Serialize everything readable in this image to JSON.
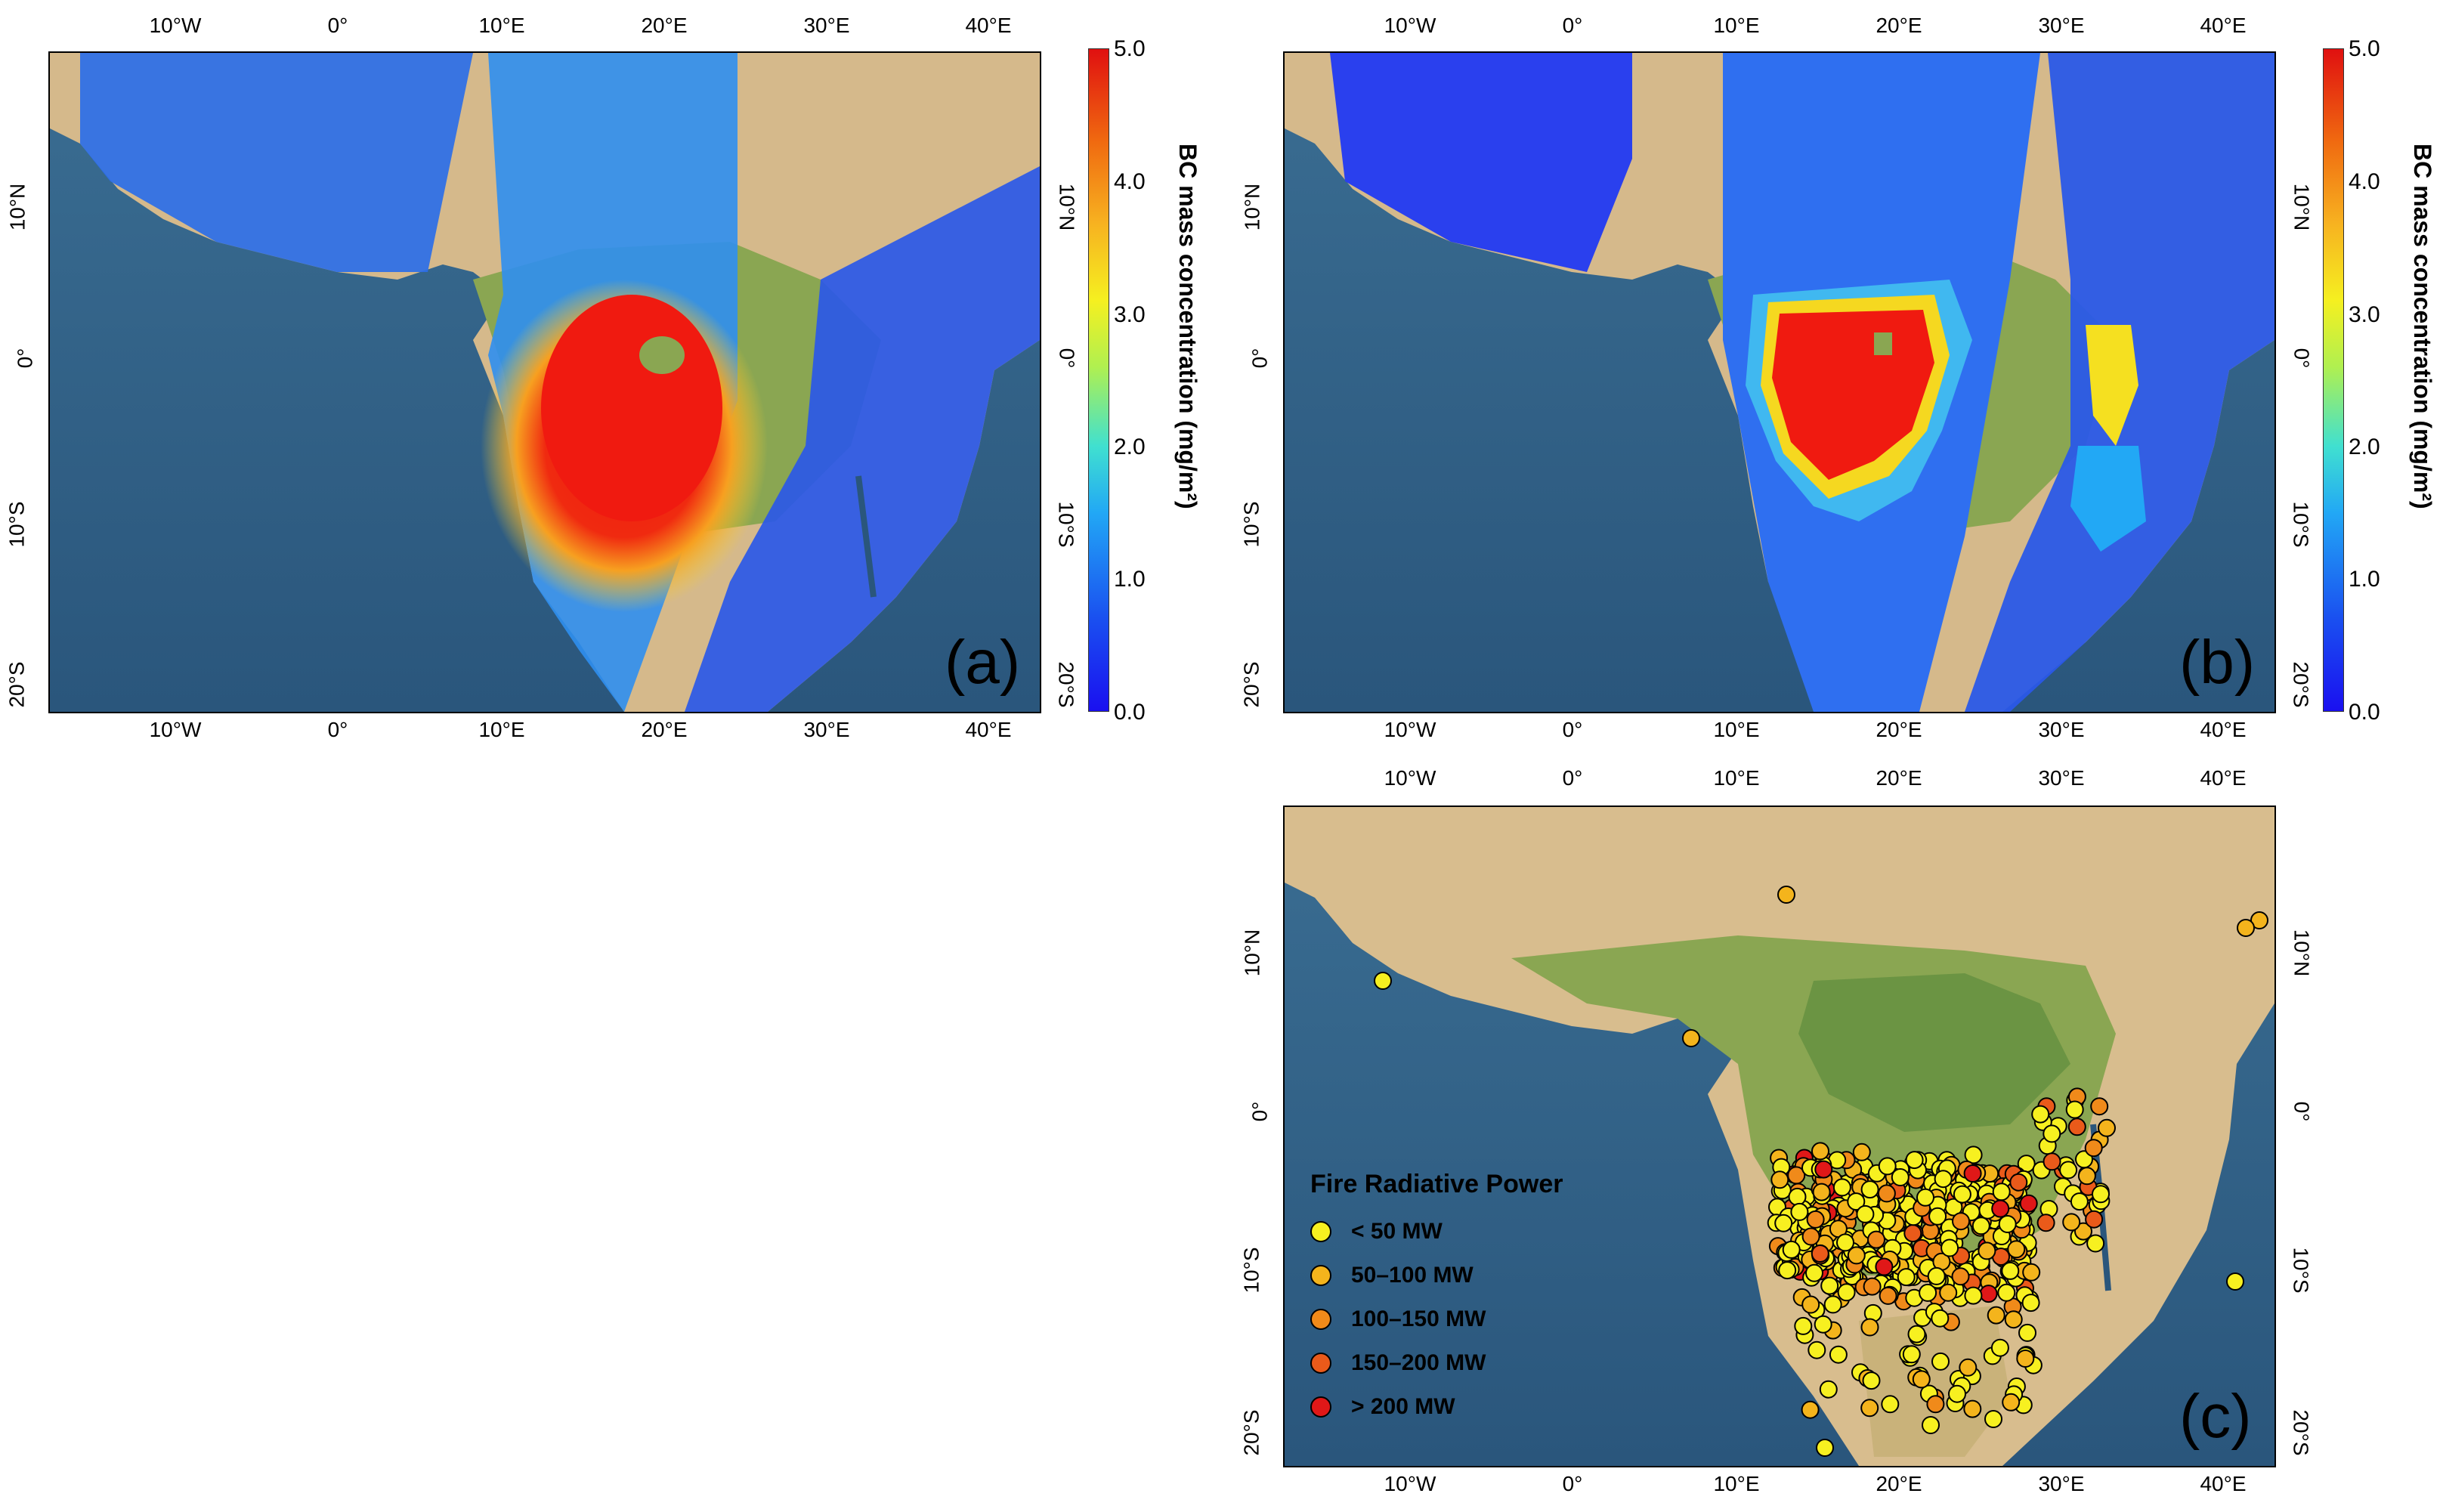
{
  "panels": [
    {
      "id": "a",
      "letter": "(a)",
      "type": "bc-map",
      "lon_ticks": [
        "10°W",
        "0°",
        "10°E",
        "20°E",
        "30°E",
        "40°E"
      ],
      "lat_ticks": [
        "10°N",
        "0°",
        "10°S",
        "20°S"
      ],
      "colorbar": {
        "label": "BC mass concentration (mg/m²)",
        "ticks": [
          "0.0",
          "1.0",
          "2.0",
          "3.0",
          "4.0",
          "5.0"
        ]
      }
    },
    {
      "id": "b",
      "letter": "(b)",
      "type": "bc-map",
      "lon_ticks": [
        "10°W",
        "0°",
        "10°E",
        "20°E",
        "30°E",
        "40°E"
      ],
      "lat_ticks": [
        "10°N",
        "0°",
        "10°S",
        "20°S"
      ],
      "colorbar": {
        "label": "BC mass concentration (mg/m²)",
        "ticks": [
          "0.0",
          "1.0",
          "2.0",
          "3.0",
          "4.0",
          "5.0"
        ]
      }
    },
    {
      "id": "c",
      "letter": "(c)",
      "type": "fire-map",
      "lon_ticks": [
        "10°W",
        "0°",
        "10°E",
        "20°E",
        "30°E",
        "40°E"
      ],
      "lat_ticks": [
        "10°N",
        "0°",
        "10°S",
        "20°S"
      ],
      "legend": {
        "title": "Fire Radiative Power",
        "items": [
          {
            "label": "< 50 MW",
            "color": "#f7f020"
          },
          {
            "label": "50–100 MW",
            "color": "#f4b41c"
          },
          {
            "label": "100–150 MW",
            "color": "#f08a1a"
          },
          {
            "label": "150–200 MW",
            "color": "#ea5a1a"
          },
          {
            "label": "> 200 MW",
            "color": "#e01818"
          }
        ]
      }
    }
  ],
  "colors": {
    "ocean": "#2d5f86",
    "land_north": "#d7b98a",
    "land_green": "#7fa04a",
    "bc_low": "#1a3cf0",
    "bc_high": "#f01a10"
  }
}
